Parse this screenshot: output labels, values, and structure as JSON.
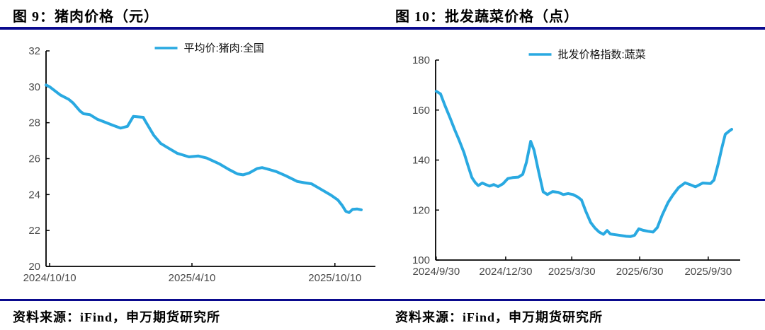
{
  "header": {
    "left_title": "图 9：猪肉价格（元）",
    "right_title": "图 10：批发蔬菜价格（点）"
  },
  "footer": {
    "left_source": "资料来源：iFind，申万期货研究所",
    "right_source": "资料来源：iFind，申万期货研究所"
  },
  "colors": {
    "rule": "#0A0A8E",
    "line": "#29A9E1",
    "axis": "#000000",
    "tick_label": "#4A4A4A",
    "legend_text": "#111111"
  },
  "chart_data": [
    {
      "type": "line",
      "title": "图 9：猪肉价格（元）",
      "ylabel": "",
      "xlabel": "",
      "unit": "元",
      "grid": false,
      "legend_position": "top-center",
      "ylim": [
        20,
        32
      ],
      "yticks": [
        20,
        22,
        24,
        26,
        28,
        30,
        32
      ],
      "x_unit": "axis-fraction",
      "xticks": [
        {
          "label": "2024/10/10",
          "pos": 0.011
        },
        {
          "label": "2025/4/10",
          "pos": 0.443
        },
        {
          "label": "2025/10/10",
          "pos": 0.877
        }
      ],
      "series": [
        {
          "name": "平均价:猪肉:全国",
          "color": "#29A9E1",
          "points": [
            [
              0.0,
              30.1
            ],
            [
              0.011,
              30.0
            ],
            [
              0.043,
              29.55
            ],
            [
              0.069,
              29.3
            ],
            [
              0.082,
              29.1
            ],
            [
              0.103,
              28.65
            ],
            [
              0.114,
              28.5
            ],
            [
              0.133,
              28.45
            ],
            [
              0.155,
              28.2
            ],
            [
              0.176,
              28.05
            ],
            [
              0.204,
              27.85
            ],
            [
              0.226,
              27.7
            ],
            [
              0.247,
              27.8
            ],
            [
              0.265,
              28.35
            ],
            [
              0.295,
              28.3
            ],
            [
              0.301,
              28.1
            ],
            [
              0.327,
              27.3
            ],
            [
              0.348,
              26.85
            ],
            [
              0.37,
              26.6
            ],
            [
              0.398,
              26.3
            ],
            [
              0.434,
              26.1
            ],
            [
              0.462,
              26.15
            ],
            [
              0.488,
              26.03
            ],
            [
              0.527,
              25.7
            ],
            [
              0.555,
              25.4
            ],
            [
              0.581,
              25.15
            ],
            [
              0.598,
              25.1
            ],
            [
              0.617,
              25.2
            ],
            [
              0.641,
              25.45
            ],
            [
              0.656,
              25.5
            ],
            [
              0.677,
              25.4
            ],
            [
              0.699,
              25.28
            ],
            [
              0.727,
              25.05
            ],
            [
              0.763,
              24.73
            ],
            [
              0.785,
              24.66
            ],
            [
              0.806,
              24.6
            ],
            [
              0.834,
              24.3
            ],
            [
              0.865,
              23.97
            ],
            [
              0.886,
              23.7
            ],
            [
              0.899,
              23.4
            ],
            [
              0.91,
              23.07
            ],
            [
              0.92,
              23.0
            ],
            [
              0.931,
              23.18
            ],
            [
              0.944,
              23.2
            ],
            [
              0.957,
              23.15
            ]
          ]
        }
      ]
    },
    {
      "type": "line",
      "title": "图 10：批发蔬菜价格（点）",
      "ylabel": "",
      "xlabel": "",
      "unit": "点",
      "grid": false,
      "legend_position": "top-center",
      "ylim": [
        100,
        180
      ],
      "yticks": [
        100,
        120,
        140,
        160,
        180
      ],
      "x_unit": "axis-fraction",
      "xticks": [
        {
          "label": "2024/9/30",
          "pos": 0.002
        },
        {
          "label": "2024/12/30",
          "pos": 0.23
        },
        {
          "label": "2025/3/30",
          "pos": 0.447
        },
        {
          "label": "2025/6/30",
          "pos": 0.67
        },
        {
          "label": "2025/9/30",
          "pos": 0.895
        }
      ],
      "series": [
        {
          "name": "批发价格指数:蔬菜",
          "color": "#29A9E1",
          "points": [
            [
              0.002,
              167.5
            ],
            [
              0.016,
              166.5
            ],
            [
              0.03,
              162.0
            ],
            [
              0.047,
              157.0
            ],
            [
              0.063,
              152.0
            ],
            [
              0.077,
              148.0
            ],
            [
              0.093,
              143.0
            ],
            [
              0.107,
              137.5
            ],
            [
              0.119,
              133.0
            ],
            [
              0.13,
              131.0
            ],
            [
              0.14,
              129.8
            ],
            [
              0.153,
              130.8
            ],
            [
              0.165,
              130.2
            ],
            [
              0.177,
              129.6
            ],
            [
              0.191,
              130.2
            ],
            [
              0.205,
              129.4
            ],
            [
              0.221,
              130.5
            ],
            [
              0.237,
              132.6
            ],
            [
              0.253,
              133.0
            ],
            [
              0.272,
              133.2
            ],
            [
              0.286,
              134.3
            ],
            [
              0.298,
              139.0
            ],
            [
              0.312,
              147.5
            ],
            [
              0.323,
              144.0
            ],
            [
              0.337,
              136.0
            ],
            [
              0.353,
              127.3
            ],
            [
              0.367,
              126.2
            ],
            [
              0.384,
              127.4
            ],
            [
              0.402,
              127.1
            ],
            [
              0.419,
              126.2
            ],
            [
              0.435,
              126.6
            ],
            [
              0.451,
              126.2
            ],
            [
              0.467,
              125.2
            ],
            [
              0.479,
              124.0
            ],
            [
              0.493,
              119.5
            ],
            [
              0.509,
              115.0
            ],
            [
              0.523,
              112.8
            ],
            [
              0.537,
              111.2
            ],
            [
              0.551,
              110.3
            ],
            [
              0.563,
              111.8
            ],
            [
              0.574,
              110.4
            ],
            [
              0.593,
              110.1
            ],
            [
              0.609,
              109.8
            ],
            [
              0.626,
              109.5
            ],
            [
              0.64,
              109.4
            ],
            [
              0.653,
              109.9
            ],
            [
              0.667,
              112.5
            ],
            [
              0.681,
              111.9
            ],
            [
              0.698,
              111.5
            ],
            [
              0.714,
              111.2
            ],
            [
              0.728,
              113.0
            ],
            [
              0.744,
              118.0
            ],
            [
              0.763,
              123.0
            ],
            [
              0.779,
              126.0
            ],
            [
              0.798,
              129.0
            ],
            [
              0.819,
              130.9
            ],
            [
              0.835,
              130.2
            ],
            [
              0.853,
              129.3
            ],
            [
              0.877,
              130.8
            ],
            [
              0.902,
              130.6
            ],
            [
              0.914,
              132.0
            ],
            [
              0.928,
              138.5
            ],
            [
              0.94,
              145.0
            ],
            [
              0.951,
              150.3
            ],
            [
              0.963,
              151.5
            ],
            [
              0.972,
              152.3
            ]
          ]
        }
      ]
    }
  ]
}
